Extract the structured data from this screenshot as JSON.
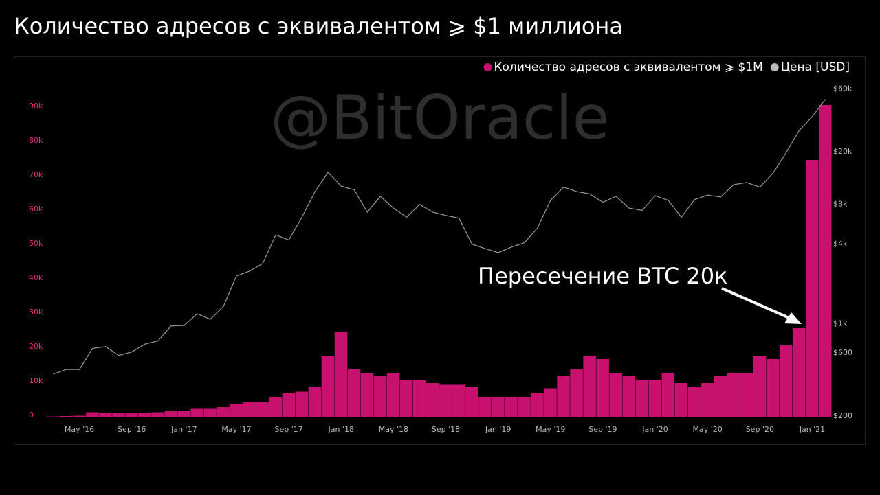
{
  "chart_data": {
    "type": "bar",
    "title": "Количество адресов с эквивалентом ⩾ $1 миллиона",
    "watermark": "@BitOracle",
    "annotation": "Пересечение BTC 20к",
    "categories": [
      null,
      null,
      "May '16",
      null,
      null,
      null,
      "Sep '16",
      null,
      null,
      null,
      "Jan '17",
      null,
      null,
      null,
      "May '17",
      null,
      null,
      null,
      "Sep '17",
      null,
      null,
      null,
      "Jan '18",
      null,
      null,
      null,
      "May '18",
      null,
      null,
      null,
      "Sep '18",
      null,
      null,
      null,
      "Jan '19",
      null,
      null,
      null,
      "May '19",
      null,
      null,
      null,
      "Sep '19",
      null,
      null,
      null,
      "Jan '20",
      null,
      null,
      null,
      "May '20",
      null,
      null,
      null,
      "Sep '20",
      null,
      null,
      null,
      "Jan '21",
      null
    ],
    "series": [
      {
        "name": "Количество адресов с эквивалентом ⩾ $1M",
        "type": "bar",
        "color": "#c8106f",
        "axis": "y",
        "values": [
          300,
          400,
          500,
          1500,
          1400,
          1300,
          1300,
          1400,
          1500,
          1800,
          2000,
          2500,
          2500,
          3000,
          4000,
          4500,
          4500,
          6000,
          7000,
          7500,
          9000,
          18000,
          25000,
          14000,
          13000,
          12000,
          13000,
          11000,
          11000,
          10000,
          9500,
          9500,
          9000,
          6000,
          6000,
          6000,
          6000,
          7000,
          8500,
          12000,
          14000,
          18000,
          17000,
          13000,
          12000,
          11000,
          11000,
          13000,
          10000,
          9000,
          10000,
          12000,
          13000,
          13000,
          18000,
          17000,
          21000,
          26000,
          75000,
          91000
        ]
      },
      {
        "name": "Цена [USD]",
        "type": "line",
        "color": "#9a9a9a",
        "axis": "y2",
        "values": [
          415,
          450,
          450,
          650,
          670,
          575,
          610,
          700,
          740,
          960,
          970,
          1190,
          1080,
          1350,
          2300,
          2500,
          2850,
          4700,
          4300,
          6400,
          10000,
          14000,
          11000,
          10300,
          7000,
          9200,
          7500,
          6400,
          8000,
          7000,
          6600,
          6300,
          4000,
          3700,
          3450,
          3800,
          4100,
          5300,
          8600,
          10800,
          10000,
          9600,
          8300,
          9200,
          7500,
          7200,
          9300,
          8600,
          6400,
          8700,
          9400,
          9100,
          11300,
          11700,
          10800,
          13800,
          19700,
          29000,
          37000,
          50000
        ]
      }
    ],
    "ylim": [
      0,
      96000
    ],
    "yticks": [
      0,
      {
        "value": 10000,
        "label": "10k"
      },
      {
        "value": 20000,
        "label": "20k"
      },
      {
        "value": 30000,
        "label": "30k"
      },
      {
        "value": 40000,
        "label": "40k"
      },
      {
        "value": 50000,
        "label": "50k"
      },
      {
        "value": 60000,
        "label": "60k"
      },
      {
        "value": 70000,
        "label": "70k"
      },
      {
        "value": 80000,
        "label": "80k"
      },
      {
        "value": 90000,
        "label": "90k"
      }
    ],
    "y2lim": [
      195,
      61000
    ],
    "y2log": true,
    "y2ticks": [
      {
        "value": 200,
        "label": "$200"
      },
      {
        "value": 600,
        "label": "$600"
      },
      {
        "value": 1000,
        "label": "$1k"
      },
      {
        "value": 4000,
        "label": "$4k"
      },
      {
        "value": 8000,
        "label": "$8k"
      },
      {
        "value": 20000,
        "label": "$20k"
      },
      {
        "value": 60000,
        "label": "$60k"
      }
    ],
    "legend": "top-right"
  }
}
